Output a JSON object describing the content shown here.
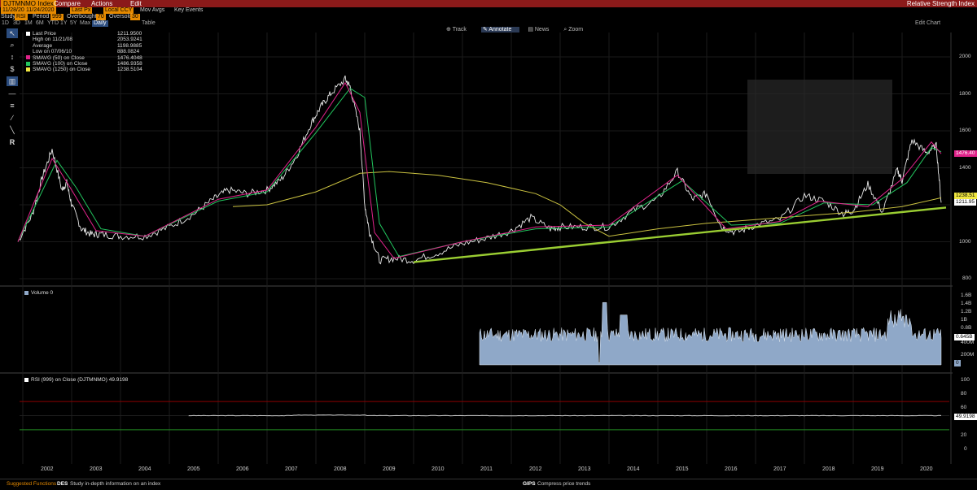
{
  "header": {
    "ticker": "DJTMNMO Index",
    "menus": [
      "Compare",
      "Actions",
      "Edit"
    ],
    "title": "Relative Strength Index"
  },
  "settings": {
    "date_from": "11/28/2001",
    "date_to": "11/24/2020",
    "price_type": "Last Px",
    "currency": "Local CCY",
    "mov_avgs": "Mov Avgs",
    "key_events": "Key Events",
    "study_label": "Study",
    "study_value": "RSI",
    "period_label": "Period",
    "period_value": "999",
    "overbought_label": "Overbought",
    "overbought_value": "70",
    "oversold_label": "Oversold",
    "oversold_value": "30",
    "tabs": [
      "1D",
      "3D",
      "1M",
      "6M",
      "YTD",
      "1Y",
      "5Y",
      "Max"
    ],
    "frequency": "Daily",
    "table_label": "Table",
    "edit_chart": "Edit Chart"
  },
  "chart_toolbar": [
    "Track",
    "Annotate",
    "News",
    "Zoom"
  ],
  "left_tools": [
    "pointer-icon",
    "zoom-icon",
    "line-icon",
    "dollar-icon",
    "chart-icon",
    "measure-icon",
    "fib-icon",
    "pen-icon",
    "ruler-icon",
    "rsi-icon"
  ],
  "price_legend": [
    {
      "label": "Last Price",
      "value": "1211.9500",
      "color": "#ffffff"
    },
    {
      "label": "High on 11/21/08",
      "value": "2053.9241",
      "color": ""
    },
    {
      "label": "Average",
      "value": "1198.9885",
      "color": ""
    },
    {
      "label": "Low on 07/06/10",
      "value": "888.0824",
      "color": ""
    },
    {
      "label": "SMAVG (50)  on Close",
      "value": "1476.4048",
      "color": "#e0238a"
    },
    {
      "label": "SMAVG (100)  on Close",
      "value": "1486.9358",
      "color": "#22c55e"
    },
    {
      "label": "SMAVG (1250)  on Close",
      "value": "1238.5104",
      "color": "#f0e640"
    }
  ],
  "volume_legend": "Volume  0",
  "rsi_legend": "RSI (999)  on Close (DJTMNMO)  49.9198",
  "price_axis": [
    "2000",
    "1800",
    "1600",
    "1400",
    "1200",
    "1000",
    "800"
  ],
  "price_badges": [
    {
      "text": "1476.40",
      "color": "#e0238a"
    },
    {
      "text": "1238.51",
      "color": "#f0e640"
    },
    {
      "text": "1211.95",
      "color": "#ffffff"
    }
  ],
  "volume_axis": [
    "1.6B",
    "1.4B",
    "1.2B",
    "1B",
    "0.8B",
    "600M",
    "400M",
    "200M",
    "0"
  ],
  "volume_badge": "0.645B",
  "volume_zero_badge": "0",
  "rsi_axis": [
    "100",
    "80",
    "60",
    "40",
    "20",
    "0"
  ],
  "rsi_badge": "49.9198",
  "x_axis": [
    "2002",
    "2003",
    "2004",
    "2005",
    "2006",
    "2007",
    "2008",
    "2009",
    "2010",
    "2011",
    "2012",
    "2013",
    "2014",
    "2015",
    "2016",
    "2017",
    "2018",
    "2019",
    "2020"
  ],
  "footer": {
    "suggested": "Suggested Functions",
    "des_code": "DES",
    "des_text": "Study in-depth information on an index",
    "gips_code": "GIPS",
    "gips_text": "Compress price trends"
  },
  "colors": {
    "accent": "#e58a00",
    "header": "#8b1a1a",
    "trendline": "#9acd32",
    "volume": "#8fa8c8",
    "rsi": "#cccccc",
    "overbought": "#8b0000",
    "oversold": "#228b22"
  },
  "chart_data": {
    "type": "line",
    "x_range": [
      2001.9,
      2020.9
    ],
    "y_range": [
      800,
      2050
    ],
    "series": [
      {
        "name": "Last Price",
        "x": [
          2001.9,
          2002.2,
          2002.4,
          2002.6,
          2002.8,
          2002.9,
          2003.0,
          2003.2,
          2003.4,
          2003.6,
          2004.0,
          2004.5,
          2005.0,
          2005.5,
          2005.9,
          2006.2,
          2006.6,
          2007.0,
          2007.3,
          2007.6,
          2007.9,
          2008.1,
          2008.3,
          2008.6,
          2008.7,
          2008.9,
          2009.0,
          2009.1,
          2009.3,
          2009.6,
          2010.0,
          2010.5,
          2011.0,
          2011.5,
          2012.0,
          2012.4,
          2012.8,
          2013.0,
          2013.5,
          2014.0,
          2014.5,
          2015.0,
          2015.4,
          2015.7,
          2016.0,
          2016.3,
          2016.6,
          2017.0,
          2017.5,
          2018.0,
          2018.4,
          2018.8,
          2019.0,
          2019.3,
          2019.6,
          2019.9,
          2020.0,
          2020.2,
          2020.5,
          2020.7,
          2020.8
        ],
        "values": [
          1000,
          1150,
          1350,
          1500,
          1280,
          1320,
          1200,
          1070,
          1040,
          1040,
          1030,
          1030,
          1080,
          1150,
          1230,
          1280,
          1260,
          1280,
          1340,
          1460,
          1640,
          1730,
          1800,
          1880,
          1840,
          1600,
          1200,
          1050,
          900,
          910,
          900,
          940,
          990,
          1020,
          1060,
          1130,
          1070,
          1080,
          1080,
          1080,
          1170,
          1230,
          1380,
          1230,
          1260,
          1080,
          1050,
          1090,
          1120,
          1250,
          1220,
          1150,
          1170,
          1310,
          1160,
          1390,
          1330,
          1550,
          1480,
          1520,
          1212
        ]
      },
      {
        "name": "SMAVG (50)  on Close",
        "x": [
          2001.9,
          2002.6,
          2003.0,
          2003.5,
          2004.5,
          2006.0,
          2007.0,
          2008.0,
          2008.6,
          2008.9,
          2009.2,
          2009.6,
          2011.0,
          2012.5,
          2014.0,
          2015.4,
          2016.4,
          2017.5,
          2018.3,
          2019.3,
          2020.0,
          2020.6,
          2020.8
        ],
        "values": [
          1000,
          1450,
          1280,
          1060,
          1030,
          1230,
          1280,
          1620,
          1860,
          1700,
          1050,
          910,
          1000,
          1080,
          1090,
          1360,
          1070,
          1110,
          1220,
          1190,
          1340,
          1540,
          1476
        ]
      },
      {
        "name": "SMAVG (100)  on Close",
        "x": [
          2001.9,
          2002.7,
          2003.1,
          2003.6,
          2004.5,
          2006.0,
          2007.0,
          2008.0,
          2008.7,
          2009.0,
          2009.3,
          2009.7,
          2011.0,
          2012.5,
          2014.0,
          2015.5,
          2016.5,
          2017.5,
          2018.4,
          2019.4,
          2020.1,
          2020.6,
          2020.8
        ],
        "values": [
          1000,
          1440,
          1290,
          1070,
          1030,
          1220,
          1270,
          1590,
          1830,
          1780,
          1100,
          920,
          1000,
          1070,
          1080,
          1330,
          1090,
          1100,
          1210,
          1200,
          1320,
          1510,
          1487
        ]
      },
      {
        "name": "SMAVG (1250)  on Close",
        "x": [
          2006.3,
          2007.0,
          2008.0,
          2008.9,
          2009.5,
          2010.5,
          2011.5,
          2012.5,
          2013.0,
          2013.5,
          2014.0,
          2015.0,
          2016.0,
          2017.0,
          2018.0,
          2019.0,
          2020.0,
          2020.8
        ],
        "values": [
          1190,
          1200,
          1270,
          1370,
          1380,
          1360,
          1320,
          1260,
          1200,
          1100,
          1030,
          1070,
          1100,
          1120,
          1140,
          1160,
          1190,
          1238
        ]
      }
    ],
    "trendline": {
      "x": [
        2010.0,
        2020.9
      ],
      "values": [
        890,
        1185
      ]
    },
    "volume": {
      "x_start": 2011.35,
      "x_end": 2020.8,
      "ylim": [
        0,
        1.7
      ],
      "unit": "B",
      "last": 0.645
    },
    "rsi": {
      "x_start": 2005.4,
      "x_end": 2020.8,
      "last": 49.9198,
      "overbought": 70,
      "oversold": 30,
      "ylim": [
        0,
        100
      ]
    }
  }
}
